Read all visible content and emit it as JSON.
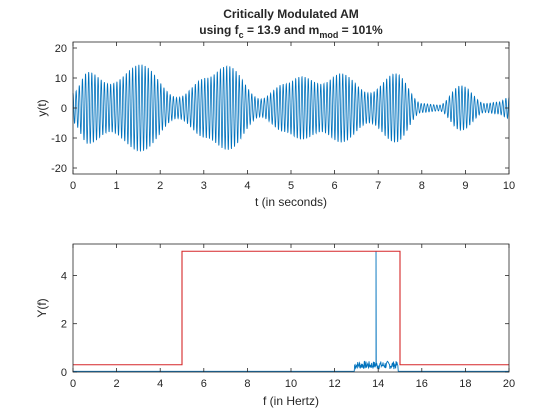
{
  "chart_data": [
    {
      "type": "line",
      "title_line1": "Critically Modulated AM",
      "title_line2": {
        "prefix": "using f",
        "fc_sub": "c",
        "middle": " = 13.9 and m",
        "m_sub": "mod",
        "suffix": " = 101%"
      },
      "xlabel": "t (in seconds)",
      "ylabel": "y(t)",
      "xlim": [
        0,
        10
      ],
      "ylim": [
        -22,
        22
      ],
      "xticks": [
        0,
        1,
        2,
        3,
        4,
        5,
        6,
        7,
        8,
        9,
        10
      ],
      "yticks": [
        -20,
        -10,
        0,
        10,
        20
      ],
      "grid": false,
      "carrier_frequency_hz": 13.9,
      "series": [
        {
          "color": "#0072BD",
          "envelope_peaks": [
            {
              "t": 0.0,
              "amp": 5
            },
            {
              "t": 0.35,
              "amp": 12
            },
            {
              "t": 0.85,
              "amp": 8
            },
            {
              "t": 1.55,
              "amp": 14.5
            },
            {
              "t": 2.4,
              "amp": 3.5
            },
            {
              "t": 3.05,
              "amp": 10
            },
            {
              "t": 3.55,
              "amp": 14
            },
            {
              "t": 4.3,
              "amp": 3
            },
            {
              "t": 4.85,
              "amp": 8
            },
            {
              "t": 5.25,
              "amp": 10.5
            },
            {
              "t": 5.7,
              "amp": 8
            },
            {
              "t": 6.15,
              "amp": 11.5
            },
            {
              "t": 6.8,
              "amp": 5
            },
            {
              "t": 7.4,
              "amp": 11.5
            },
            {
              "t": 8.0,
              "amp": 1.5
            },
            {
              "t": 8.4,
              "amp": 1
            },
            {
              "t": 8.9,
              "amp": 7.5
            },
            {
              "t": 9.45,
              "amp": 1.5
            },
            {
              "t": 9.75,
              "amp": 2
            },
            {
              "t": 10.0,
              "amp": 3.5
            }
          ]
        }
      ]
    },
    {
      "type": "line",
      "xlabel": "f (in Hertz)",
      "ylabel": "Y(f)",
      "xlim": [
        0,
        20
      ],
      "ylim": [
        0,
        5.3
      ],
      "xticks": [
        0,
        2,
        4,
        6,
        8,
        10,
        12,
        14,
        16,
        18,
        20
      ],
      "yticks": [
        0,
        2,
        4
      ],
      "grid": false,
      "series": [
        {
          "color": "#D62728",
          "shape": "rect-window",
          "points": [
            [
              0,
              0.3
            ],
            [
              5,
              0.3
            ],
            [
              5,
              5
            ],
            [
              15,
              5
            ],
            [
              15,
              0.3
            ],
            [
              20,
              0.3
            ]
          ]
        },
        {
          "color": "#0072BD",
          "shape": "spectrum",
          "baseline": 0.03,
          "noise_band": [
            12.9,
            14.9
          ],
          "noise_max": 0.45,
          "peak": {
            "f": 13.9,
            "value": 5.0
          }
        }
      ]
    }
  ]
}
